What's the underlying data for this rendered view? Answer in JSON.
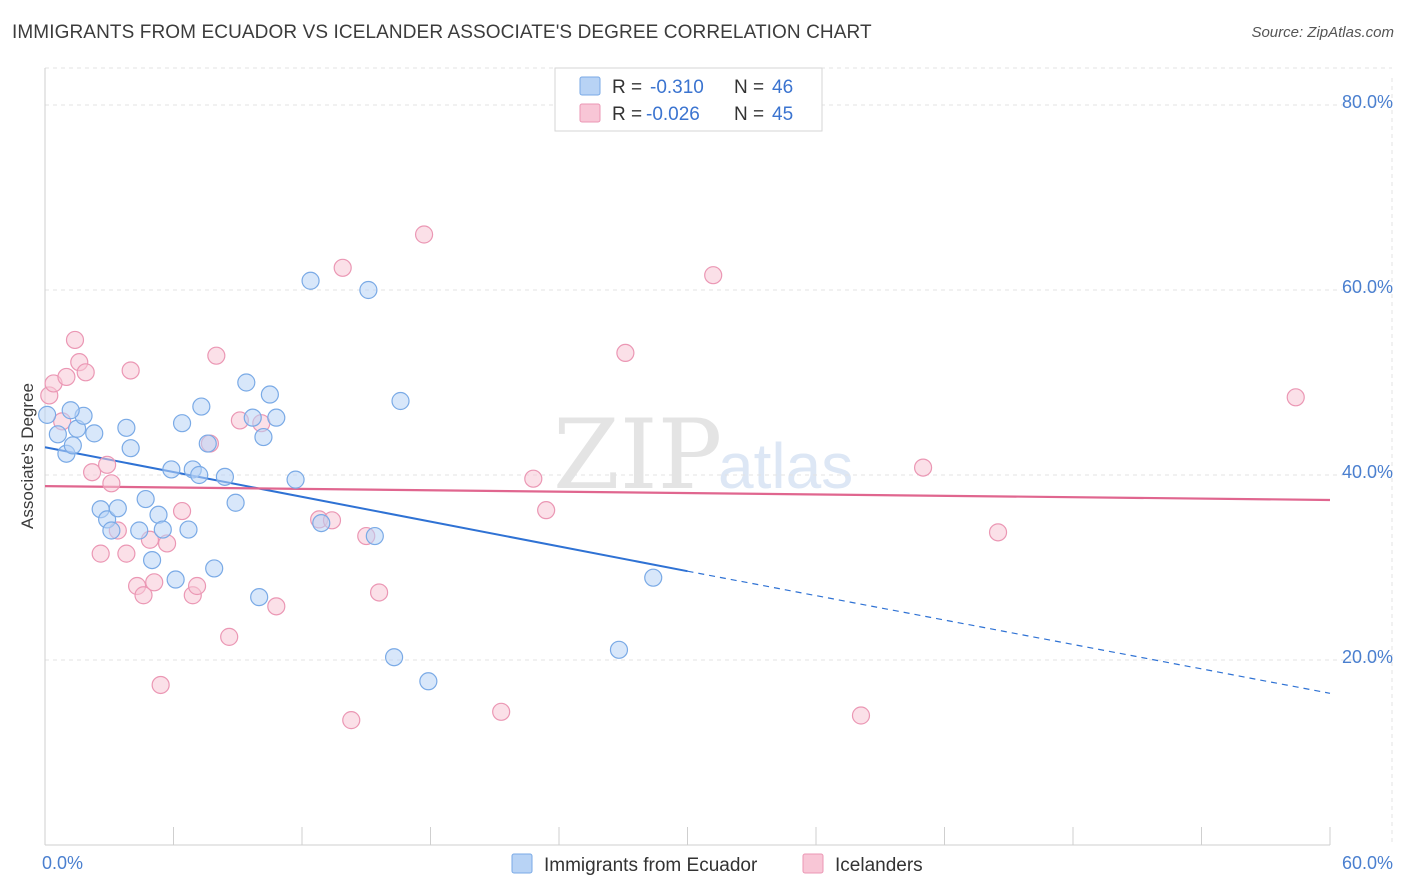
{
  "title": "IMMIGRANTS FROM ECUADOR VS ICELANDER ASSOCIATE'S DEGREE CORRELATION CHART",
  "source": "Source: ZipAtlas.com",
  "watermark": {
    "zip": "ZIP",
    "atlas": "atlas"
  },
  "colors": {
    "blue_fill": "#b8d3f5",
    "blue_stroke": "#7aaae6",
    "blue_line": "#2f72d4",
    "pink_fill": "#f8c6d6",
    "pink_stroke": "#eb97b4",
    "pink_line": "#e0668f",
    "grid": "#e3e3e3",
    "axis_text": "#4a7fcf"
  },
  "legend": {
    "rows": [
      {
        "r_label": "R =",
        "r_value": "-0.310",
        "n_label": "N =",
        "n_value": "46"
      },
      {
        "r_label": "R =",
        "r_value": "-0.026",
        "n_label": "N =",
        "n_value": "45"
      }
    ]
  },
  "bottom_legend": {
    "series1": "Immigrants from Ecuador",
    "series2": "Icelanders"
  },
  "chart_data": {
    "type": "scatter",
    "title": "IMMIGRANTS FROM ECUADOR VS ICELANDER ASSOCIATE'S DEGREE CORRELATION CHART",
    "xlabel": "",
    "ylabel": "Associate's Degree",
    "xlim": [
      0,
      60
    ],
    "ylim": [
      0,
      84
    ],
    "x_tick_labels": [
      "0.0%",
      "60.0%"
    ],
    "y_ticks": [
      20,
      40,
      60,
      80
    ],
    "y_tick_labels": [
      "20.0%",
      "40.0%",
      "60.0%",
      "80.0%"
    ],
    "grid": true,
    "series": [
      {
        "name": "Immigrants from Ecuador",
        "color": "blue",
        "trend": {
          "x0": 0,
          "y0": 43.0,
          "x1": 30,
          "y1": 29.6,
          "dash_to_x": 60,
          "dash_to_y": 16.4
        },
        "points": [
          [
            0.1,
            46.5
          ],
          [
            0.6,
            44.4
          ],
          [
            1.0,
            42.3
          ],
          [
            1.5,
            45.0
          ],
          [
            1.8,
            46.4
          ],
          [
            2.3,
            44.5
          ],
          [
            1.3,
            43.2
          ],
          [
            3.8,
            45.1
          ],
          [
            4.0,
            42.9
          ],
          [
            2.6,
            36.3
          ],
          [
            2.9,
            35.2
          ],
          [
            3.4,
            36.4
          ],
          [
            3.1,
            34.0
          ],
          [
            5.9,
            40.6
          ],
          [
            6.4,
            45.6
          ],
          [
            7.3,
            47.4
          ],
          [
            7.6,
            43.4
          ],
          [
            6.9,
            40.6
          ],
          [
            7.2,
            40.0
          ],
          [
            8.4,
            39.8
          ],
          [
            9.4,
            50.0
          ],
          [
            9.7,
            46.2
          ],
          [
            10.2,
            44.1
          ],
          [
            10.5,
            48.7
          ],
          [
            10.8,
            46.2
          ],
          [
            11.7,
            39.5
          ],
          [
            12.4,
            61.0
          ],
          [
            15.1,
            60.0
          ],
          [
            16.6,
            48.0
          ],
          [
            12.9,
            34.8
          ],
          [
            15.4,
            33.4
          ],
          [
            4.4,
            34.0
          ],
          [
            4.7,
            37.4
          ],
          [
            5.3,
            35.7
          ],
          [
            5.5,
            34.1
          ],
          [
            5.0,
            30.8
          ],
          [
            6.1,
            28.7
          ],
          [
            8.9,
            37.0
          ],
          [
            7.9,
            29.9
          ],
          [
            10.0,
            26.8
          ],
          [
            6.7,
            34.1
          ],
          [
            16.3,
            20.3
          ],
          [
            17.9,
            17.7
          ],
          [
            26.8,
            21.1
          ],
          [
            28.4,
            28.9
          ],
          [
            1.2,
            47.0
          ]
        ]
      },
      {
        "name": "Icelanders",
        "color": "pink",
        "trend": {
          "x0": 0,
          "y0": 38.8,
          "x1": 60,
          "y1": 37.3
        },
        "points": [
          [
            0.2,
            48.6
          ],
          [
            0.4,
            49.9
          ],
          [
            0.8,
            45.8
          ],
          [
            1.0,
            50.6
          ],
          [
            1.4,
            54.6
          ],
          [
            1.6,
            52.2
          ],
          [
            1.9,
            51.1
          ],
          [
            2.2,
            40.3
          ],
          [
            2.6,
            31.5
          ],
          [
            2.9,
            41.1
          ],
          [
            3.1,
            39.1
          ],
          [
            3.4,
            34.0
          ],
          [
            3.8,
            31.5
          ],
          [
            4.0,
            51.3
          ],
          [
            4.3,
            28.0
          ],
          [
            4.6,
            27.0
          ],
          [
            4.9,
            33.0
          ],
          [
            5.1,
            28.4
          ],
          [
            5.4,
            17.3
          ],
          [
            5.7,
            32.6
          ],
          [
            6.4,
            36.1
          ],
          [
            6.9,
            27.0
          ],
          [
            7.1,
            28.0
          ],
          [
            7.7,
            43.4
          ],
          [
            8.0,
            52.9
          ],
          [
            8.6,
            22.5
          ],
          [
            9.1,
            45.9
          ],
          [
            10.1,
            45.6
          ],
          [
            10.8,
            25.8
          ],
          [
            12.8,
            35.2
          ],
          [
            13.4,
            35.1
          ],
          [
            13.9,
            62.4
          ],
          [
            14.3,
            13.5
          ],
          [
            15.0,
            33.4
          ],
          [
            15.6,
            27.3
          ],
          [
            17.7,
            66.0
          ],
          [
            21.3,
            14.4
          ],
          [
            22.8,
            39.6
          ],
          [
            23.4,
            36.2
          ],
          [
            27.1,
            53.2
          ],
          [
            31.2,
            61.6
          ],
          [
            38.1,
            14.0
          ],
          [
            41.0,
            40.8
          ],
          [
            44.5,
            33.8
          ],
          [
            58.4,
            48.4
          ]
        ]
      }
    ]
  }
}
